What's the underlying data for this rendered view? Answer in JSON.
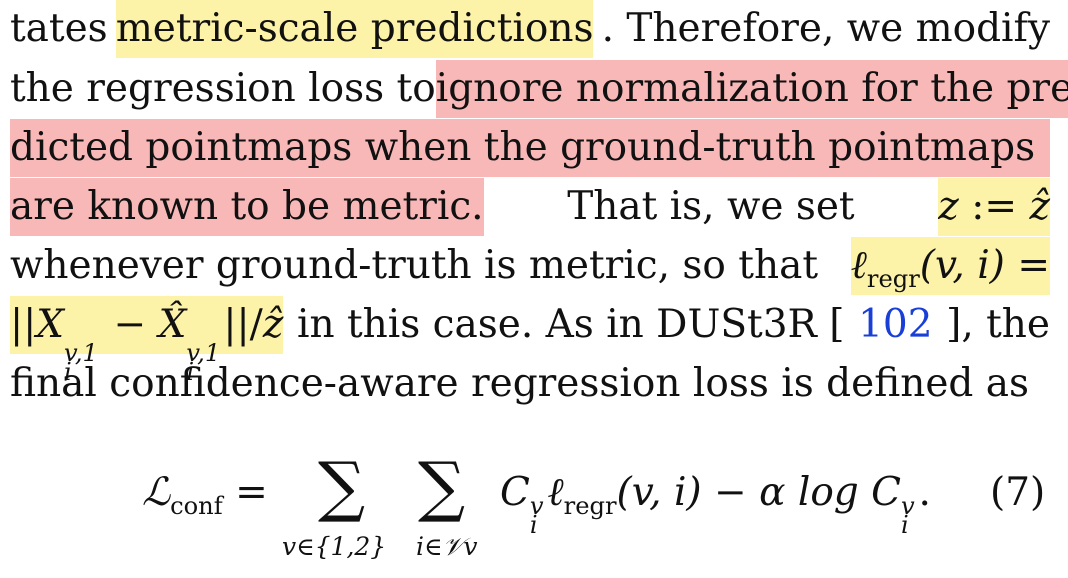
{
  "lines": [
    {
      "segments": [
        {
          "text": "tates ",
          "hl": ""
        },
        {
          "text": "metric-scale predictions",
          "hl": "y"
        },
        {
          "text": ". Therefore, we modify",
          "hl": ""
        }
      ]
    },
    {
      "segments": [
        {
          "text": "the regression loss to ",
          "hl": ""
        },
        {
          "text": "ignore normalization for the pre-",
          "hl": "r"
        }
      ]
    },
    {
      "segments": [
        {
          "text": "dicted pointmaps when the ground-truth pointmaps",
          "hl": "r"
        }
      ]
    },
    {
      "segments": [
        {
          "text": "are known to be metric.",
          "hl": "r"
        },
        {
          "text": " That is, we set ",
          "hl": ""
        },
        {
          "text": "z := ẑ",
          "hl": "y",
          "italic": true
        }
      ]
    },
    {
      "segments": [
        {
          "text": "whenever ground-truth is metric, so that ",
          "hl": ""
        },
        {
          "text": "ℓregr(v, i) =",
          "hl": "y",
          "italic": true
        }
      ]
    },
    {
      "segments": [
        {
          "text": "||X v,1 i − X̂ v,1 i ||/ẑ",
          "hl": "y",
          "italic": true
        },
        {
          "text": " in this case. As in DUSt3R [",
          "hl": ""
        },
        {
          "text": "102",
          "hl": "",
          "cite": true
        },
        {
          "text": "], the",
          "hl": ""
        }
      ]
    },
    {
      "segments": [
        {
          "text": "final confidence-aware regression loss is defined as",
          "hl": ""
        }
      ]
    }
  ],
  "math": {
    "ell": "ℓ",
    "regr": "regr",
    "args": "(v, i)",
    "eq": "=",
    "norm_open": "||",
    "X": "X",
    "Xhat": "X̂",
    "sup_v1": "v,1",
    "sub_i": "i",
    "minus": "−",
    "norm_close": "||/",
    "zhat": "ẑ",
    "z": "z",
    "assign": ":="
  },
  "equation": {
    "lhs": "ℒ",
    "lhs_sub": "conf",
    "equals": "=",
    "sum_symbol": "∑",
    "sum1_sub": "v∈{1,2}",
    "sum2_sub": "i∈𝒱v",
    "body_C": "C",
    "body_sup": "v",
    "body_sub": "i",
    "body_ell": "ℓ",
    "body_regr": "regr",
    "body_args": "(v, i) − α log C",
    "body_end": ".",
    "number": "(7)"
  },
  "colors": {
    "highlight_yellow": "#fdf3a8",
    "highlight_red": "#f9b8b8",
    "citation": "#1a3fd6"
  }
}
